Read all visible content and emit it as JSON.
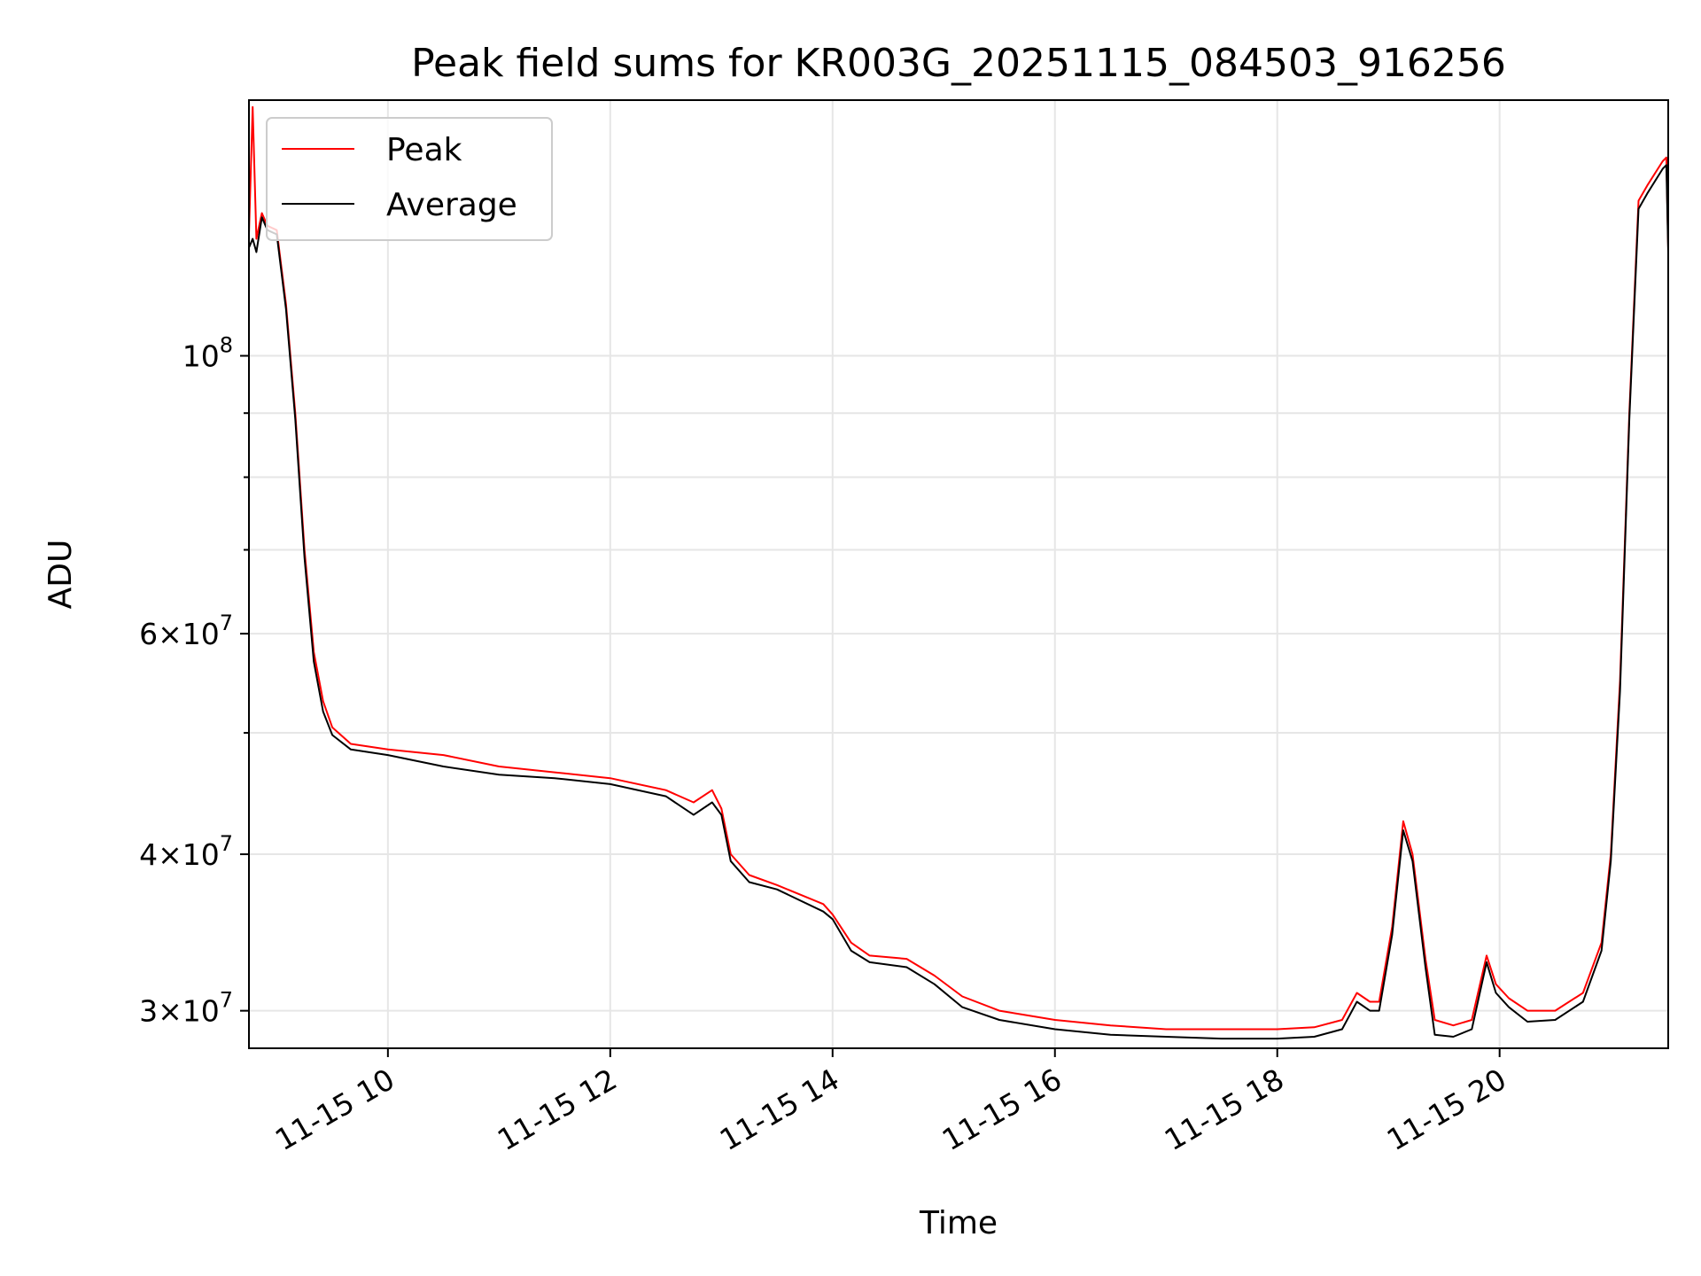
{
  "chart_data": {
    "type": "line",
    "title": "Peak field sums for KR003G_20251115_084503_916256",
    "xlabel": "Time",
    "ylabel": "ADU",
    "yscale": "log",
    "grid": true,
    "legend_placement": "top-left",
    "xlim": [
      "2025-11-15 08:45",
      "2025-11-15 21:31"
    ],
    "ylim": [
      28000000,
      160000000
    ],
    "x_ticks": [
      {
        "value": "2025-11-15 10:00",
        "label": "11-15 10"
      },
      {
        "value": "2025-11-15 12:00",
        "label": "11-15 12"
      },
      {
        "value": "2025-11-15 14:00",
        "label": "11-15 14"
      },
      {
        "value": "2025-11-15 16:00",
        "label": "11-15 16"
      },
      {
        "value": "2025-11-15 18:00",
        "label": "11-15 18"
      },
      {
        "value": "2025-11-15 20:00",
        "label": "11-15 20"
      }
    ],
    "y_ticks": [
      {
        "value": 30000000,
        "base": "3",
        "exp": "7"
      },
      {
        "value": 40000000,
        "base": "4",
        "exp": "7"
      },
      {
        "value": 60000000,
        "base": "6",
        "exp": "7"
      },
      {
        "value": 100000000,
        "base": "",
        "exp": "8"
      }
    ],
    "y_minor_ticks": [
      50000000,
      70000000,
      80000000,
      90000000
    ],
    "series": [
      {
        "name": "Peak",
        "color": "#ff0000",
        "points": [
          [
            "2025-11-15 08:45",
            125000000
          ],
          [
            "2025-11-15 08:47",
            158000000
          ],
          [
            "2025-11-15 08:49",
            124000000
          ],
          [
            "2025-11-15 08:52",
            130000000
          ],
          [
            "2025-11-15 08:55",
            127000000
          ],
          [
            "2025-11-15 09:00",
            126000000
          ],
          [
            "2025-11-15 09:05",
            110000000
          ],
          [
            "2025-11-15 09:10",
            90000000
          ],
          [
            "2025-11-15 09:15",
            70000000
          ],
          [
            "2025-11-15 09:20",
            58000000
          ],
          [
            "2025-11-15 09:25",
            53000000
          ],
          [
            "2025-11-15 09:30",
            50500000
          ],
          [
            "2025-11-15 09:40",
            49000000
          ],
          [
            "2025-11-15 10:00",
            48500000
          ],
          [
            "2025-11-15 10:30",
            48000000
          ],
          [
            "2025-11-15 11:00",
            47000000
          ],
          [
            "2025-11-15 11:30",
            46500000
          ],
          [
            "2025-11-15 12:00",
            46000000
          ],
          [
            "2025-11-15 12:30",
            45000000
          ],
          [
            "2025-11-15 12:45",
            44000000
          ],
          [
            "2025-11-15 12:55",
            45000000
          ],
          [
            "2025-11-15 13:00",
            43500000
          ],
          [
            "2025-11-15 13:05",
            40000000
          ],
          [
            "2025-11-15 13:15",
            38500000
          ],
          [
            "2025-11-15 13:30",
            37800000
          ],
          [
            "2025-11-15 13:55",
            36500000
          ],
          [
            "2025-11-15 14:00",
            35800000
          ],
          [
            "2025-11-15 14:10",
            34000000
          ],
          [
            "2025-11-15 14:20",
            33200000
          ],
          [
            "2025-11-15 14:40",
            33000000
          ],
          [
            "2025-11-15 14:55",
            32000000
          ],
          [
            "2025-11-15 15:10",
            30800000
          ],
          [
            "2025-11-15 15:30",
            30000000
          ],
          [
            "2025-11-15 16:00",
            29500000
          ],
          [
            "2025-11-15 16:30",
            29200000
          ],
          [
            "2025-11-15 17:00",
            29000000
          ],
          [
            "2025-11-15 17:30",
            29000000
          ],
          [
            "2025-11-15 18:00",
            29000000
          ],
          [
            "2025-11-15 18:20",
            29100000
          ],
          [
            "2025-11-15 18:35",
            29500000
          ],
          [
            "2025-11-15 18:43",
            31000000
          ],
          [
            "2025-11-15 18:50",
            30500000
          ],
          [
            "2025-11-15 18:55",
            30500000
          ],
          [
            "2025-11-15 19:02",
            35000000
          ],
          [
            "2025-11-15 19:08",
            42500000
          ],
          [
            "2025-11-15 19:13",
            40000000
          ],
          [
            "2025-11-15 19:20",
            33000000
          ],
          [
            "2025-11-15 19:25",
            29500000
          ],
          [
            "2025-11-15 19:35",
            29200000
          ],
          [
            "2025-11-15 19:45",
            29500000
          ],
          [
            "2025-11-15 19:53",
            33200000
          ],
          [
            "2025-11-15 19:58",
            31500000
          ],
          [
            "2025-11-15 20:05",
            30700000
          ],
          [
            "2025-11-15 20:15",
            30000000
          ],
          [
            "2025-11-15 20:30",
            30000000
          ],
          [
            "2025-11-15 20:45",
            31000000
          ],
          [
            "2025-11-15 20:55",
            34000000
          ],
          [
            "2025-11-15 21:00",
            40000000
          ],
          [
            "2025-11-15 21:05",
            55000000
          ],
          [
            "2025-11-15 21:10",
            90000000
          ],
          [
            "2025-11-15 21:15",
            133000000
          ],
          [
            "2025-11-15 21:20",
            137000000
          ],
          [
            "2025-11-15 21:28",
            143000000
          ],
          [
            "2025-11-15 21:30",
            144000000
          ],
          [
            "2025-11-15 21:31",
            122000000
          ]
        ]
      },
      {
        "name": "Average",
        "color": "#000000",
        "points": [
          [
            "2025-11-15 08:45",
            122000000
          ],
          [
            "2025-11-15 08:47",
            124000000
          ],
          [
            "2025-11-15 08:49",
            121000000
          ],
          [
            "2025-11-15 08:52",
            129000000
          ],
          [
            "2025-11-15 08:55",
            126000000
          ],
          [
            "2025-11-15 09:00",
            125000000
          ],
          [
            "2025-11-15 09:05",
            109000000
          ],
          [
            "2025-11-15 09:10",
            89000000
          ],
          [
            "2025-11-15 09:15",
            69000000
          ],
          [
            "2025-11-15 09:20",
            57000000
          ],
          [
            "2025-11-15 09:25",
            52000000
          ],
          [
            "2025-11-15 09:30",
            49800000
          ],
          [
            "2025-11-15 09:40",
            48500000
          ],
          [
            "2025-11-15 10:00",
            48000000
          ],
          [
            "2025-11-15 10:30",
            47000000
          ],
          [
            "2025-11-15 11:00",
            46300000
          ],
          [
            "2025-11-15 11:30",
            46000000
          ],
          [
            "2025-11-15 12:00",
            45500000
          ],
          [
            "2025-11-15 12:30",
            44500000
          ],
          [
            "2025-11-15 12:45",
            43000000
          ],
          [
            "2025-11-15 12:55",
            44000000
          ],
          [
            "2025-11-15 13:00",
            43000000
          ],
          [
            "2025-11-15 13:05",
            39500000
          ],
          [
            "2025-11-15 13:15",
            38000000
          ],
          [
            "2025-11-15 13:30",
            37500000
          ],
          [
            "2025-11-15 13:55",
            36000000
          ],
          [
            "2025-11-15 14:00",
            35500000
          ],
          [
            "2025-11-15 14:10",
            33500000
          ],
          [
            "2025-11-15 14:20",
            32800000
          ],
          [
            "2025-11-15 14:40",
            32500000
          ],
          [
            "2025-11-15 14:55",
            31500000
          ],
          [
            "2025-11-15 15:10",
            30200000
          ],
          [
            "2025-11-15 15:30",
            29500000
          ],
          [
            "2025-11-15 16:00",
            29000000
          ],
          [
            "2025-11-15 16:30",
            28700000
          ],
          [
            "2025-11-15 17:00",
            28600000
          ],
          [
            "2025-11-15 17:30",
            28500000
          ],
          [
            "2025-11-15 18:00",
            28500000
          ],
          [
            "2025-11-15 18:20",
            28600000
          ],
          [
            "2025-11-15 18:35",
            29000000
          ],
          [
            "2025-11-15 18:43",
            30500000
          ],
          [
            "2025-11-15 18:50",
            30000000
          ],
          [
            "2025-11-15 18:55",
            30000000
          ],
          [
            "2025-11-15 19:02",
            34500000
          ],
          [
            "2025-11-15 19:08",
            41800000
          ],
          [
            "2025-11-15 19:13",
            39500000
          ],
          [
            "2025-11-15 19:20",
            32500000
          ],
          [
            "2025-11-15 19:25",
            28700000
          ],
          [
            "2025-11-15 19:35",
            28600000
          ],
          [
            "2025-11-15 19:45",
            29000000
          ],
          [
            "2025-11-15 19:53",
            32800000
          ],
          [
            "2025-11-15 19:58",
            31000000
          ],
          [
            "2025-11-15 20:05",
            30200000
          ],
          [
            "2025-11-15 20:15",
            29400000
          ],
          [
            "2025-11-15 20:30",
            29500000
          ],
          [
            "2025-11-15 20:45",
            30500000
          ],
          [
            "2025-11-15 20:55",
            33500000
          ],
          [
            "2025-11-15 21:00",
            39500000
          ],
          [
            "2025-11-15 21:05",
            54000000
          ],
          [
            "2025-11-15 21:10",
            89000000
          ],
          [
            "2025-11-15 21:15",
            131000000
          ],
          [
            "2025-11-15 21:20",
            135000000
          ],
          [
            "2025-11-15 21:28",
            141000000
          ],
          [
            "2025-11-15 21:30",
            142000000
          ],
          [
            "2025-11-15 21:31",
            121000000
          ]
        ]
      }
    ]
  }
}
